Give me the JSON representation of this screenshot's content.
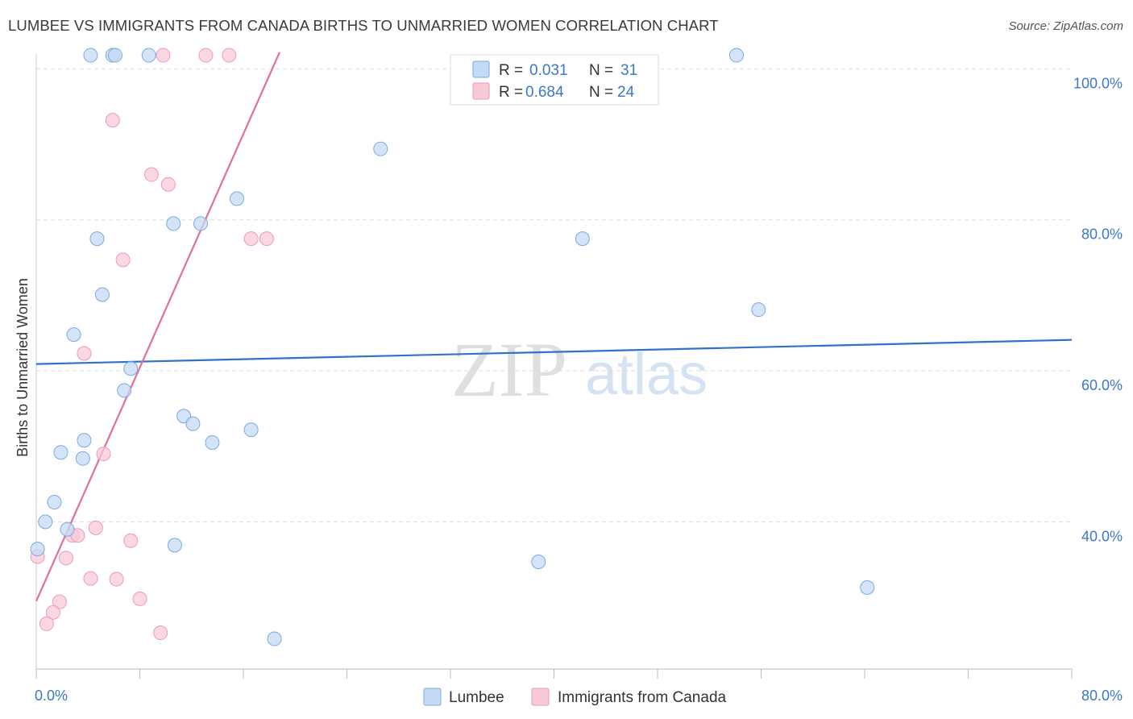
{
  "title": "LUMBEE VS IMMIGRANTS FROM CANADA BIRTHS TO UNMARRIED WOMEN CORRELATION CHART",
  "source": "Source: ZipAtlas.com",
  "watermark": {
    "zip": "ZIP",
    "atlas": "atlas"
  },
  "colors": {
    "lumbee_fill": "#c5daf4",
    "lumbee_stroke": "#7aaae0",
    "lumbee_line": "#2f72c8",
    "canada_fill": "#f8cad8",
    "canada_stroke": "#ee9ab6",
    "canada_line": "#e0709a",
    "tick_text": "#3b78c7",
    "grid": "#dddddd"
  },
  "chart_data": {
    "type": "scatter",
    "xlabel": "",
    "ylabel": "Births to Unmarried Women",
    "xlim": [
      0,
      80
    ],
    "ylim": [
      20.5,
      102.5
    ],
    "x_tick_labels": [
      {
        "value": 0,
        "label": "0.0%"
      },
      {
        "value": 80,
        "label": "80.0%"
      }
    ],
    "y_tick_labels": [
      {
        "value": 40,
        "label": "40.0%"
      },
      {
        "value": 60,
        "label": "60.0%"
      },
      {
        "value": 80,
        "label": "80.0%"
      },
      {
        "value": 100,
        "label": "100.0%"
      }
    ],
    "legend": [
      {
        "series": "Lumbee",
        "r_label": "R =",
        "r_value": "0.031",
        "n_label": "N =",
        "n_value": "31"
      },
      {
        "series": "Immigrants from Canada",
        "r_label": "R =",
        "r_value": "0.684",
        "n_label": "N =",
        "n_value": "24"
      }
    ],
    "series": [
      {
        "name": "Lumbee",
        "trend": {
          "x": [
            0,
            80
          ],
          "y": [
            60.9,
            64.1
          ]
        },
        "points": [
          {
            "x": 4.2,
            "y": 101.8
          },
          {
            "x": 5.9,
            "y": 101.8
          },
          {
            "x": 6.1,
            "y": 101.8
          },
          {
            "x": 8.7,
            "y": 101.8
          },
          {
            "x": 54.1,
            "y": 101.8
          },
          {
            "x": 26.6,
            "y": 89.4
          },
          {
            "x": 15.5,
            "y": 82.8
          },
          {
            "x": 10.6,
            "y": 79.5
          },
          {
            "x": 12.7,
            "y": 79.5
          },
          {
            "x": 4.7,
            "y": 77.5
          },
          {
            "x": 42.2,
            "y": 77.5
          },
          {
            "x": 5.1,
            "y": 70.1
          },
          {
            "x": 55.8,
            "y": 68.1
          },
          {
            "x": 2.9,
            "y": 64.8
          },
          {
            "x": 7.3,
            "y": 60.3
          },
          {
            "x": 6.8,
            "y": 57.4
          },
          {
            "x": 11.4,
            "y": 54.0
          },
          {
            "x": 12.1,
            "y": 53.0
          },
          {
            "x": 16.6,
            "y": 52.2
          },
          {
            "x": 13.6,
            "y": 50.5
          },
          {
            "x": 3.7,
            "y": 50.8
          },
          {
            "x": 1.9,
            "y": 49.2
          },
          {
            "x": 3.6,
            "y": 48.4
          },
          {
            "x": 1.4,
            "y": 42.6
          },
          {
            "x": 0.7,
            "y": 40.0
          },
          {
            "x": 2.4,
            "y": 39.0
          },
          {
            "x": 10.7,
            "y": 36.9
          },
          {
            "x": 0.1,
            "y": 36.4
          },
          {
            "x": 38.8,
            "y": 34.7
          },
          {
            "x": 64.2,
            "y": 31.3
          },
          {
            "x": 18.4,
            "y": 24.5
          }
        ]
      },
      {
        "name": "Immigrants from Canada",
        "trend": {
          "x": [
            0,
            18.8
          ],
          "y": [
            29.5,
            102.2
          ]
        },
        "points": [
          {
            "x": 9.8,
            "y": 101.8
          },
          {
            "x": 13.1,
            "y": 101.8
          },
          {
            "x": 14.9,
            "y": 101.8
          },
          {
            "x": 5.9,
            "y": 93.2
          },
          {
            "x": 8.9,
            "y": 86.0
          },
          {
            "x": 10.2,
            "y": 84.7
          },
          {
            "x": 16.6,
            "y": 77.5
          },
          {
            "x": 17.8,
            "y": 77.5
          },
          {
            "x": 6.7,
            "y": 74.7
          },
          {
            "x": 3.7,
            "y": 62.3
          },
          {
            "x": 5.2,
            "y": 49.0
          },
          {
            "x": 4.6,
            "y": 39.2
          },
          {
            "x": 2.8,
            "y": 38.2
          },
          {
            "x": 3.2,
            "y": 38.2
          },
          {
            "x": 7.3,
            "y": 37.5
          },
          {
            "x": 2.3,
            "y": 35.2
          },
          {
            "x": 0.1,
            "y": 35.4
          },
          {
            "x": 4.2,
            "y": 32.5
          },
          {
            "x": 6.2,
            "y": 32.4
          },
          {
            "x": 8.0,
            "y": 29.8
          },
          {
            "x": 1.8,
            "y": 29.4
          },
          {
            "x": 1.3,
            "y": 28.0
          },
          {
            "x": 0.8,
            "y": 26.5
          },
          {
            "x": 9.6,
            "y": 25.3
          }
        ]
      }
    ]
  }
}
